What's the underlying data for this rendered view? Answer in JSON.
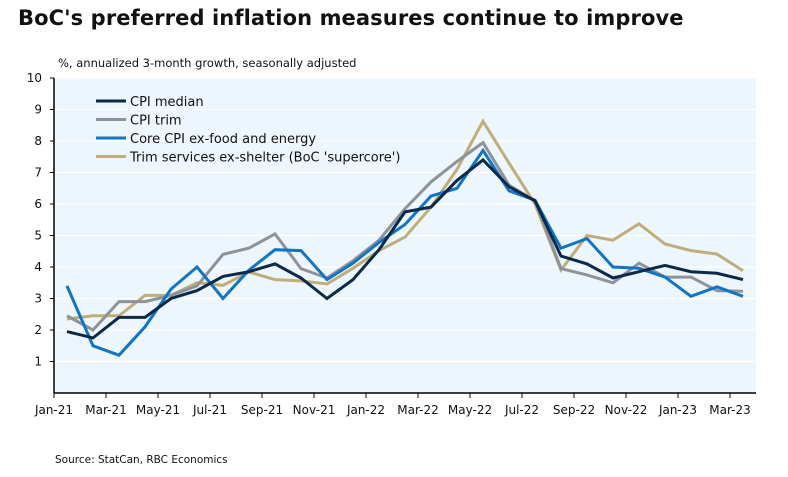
{
  "title": "BoC's preferred inflation measures continue to improve",
  "subtitle": "%, annualized 3-month growth, seasonally adjusted",
  "source": "Source: StatCan, RBC Economics",
  "chart_data": {
    "type": "line",
    "title": "BoC's preferred inflation measures continue to improve",
    "ylabel": "%, annualized 3-month growth, seasonally adjusted",
    "xlabel": "",
    "ylim": [
      0,
      10
    ],
    "yticks": [
      1,
      2,
      3,
      4,
      5,
      6,
      7,
      8,
      9,
      10
    ],
    "grid": true,
    "legend_position": "top-left",
    "x": [
      "Jan-21",
      "Feb-21",
      "Mar-21",
      "Apr-21",
      "May-21",
      "Jun-21",
      "Jul-21",
      "Aug-21",
      "Sep-21",
      "Oct-21",
      "Nov-21",
      "Dec-21",
      "Jan-22",
      "Feb-22",
      "Mar-22",
      "Apr-22",
      "May-22",
      "Jun-22",
      "Jul-22",
      "Aug-22",
      "Sep-22",
      "Oct-22",
      "Nov-22",
      "Dec-22",
      "Jan-23",
      "Feb-23",
      "Mar-23"
    ],
    "xtick_labels": [
      "Jan-21",
      "Mar-21",
      "May-21",
      "Jul-21",
      "Sep-21",
      "Nov-21",
      "Jan-22",
      "Mar-22",
      "May-22",
      "Jul-22",
      "Sep-22",
      "Nov-22",
      "Jan-23",
      "Mar-23"
    ],
    "series": [
      {
        "name": "CPI median",
        "color": "#0b2a4a",
        "values": [
          1.95,
          1.75,
          2.4,
          2.4,
          3.0,
          3.25,
          3.7,
          3.85,
          4.1,
          3.65,
          3.0,
          3.6,
          4.55,
          5.75,
          5.9,
          6.75,
          7.4,
          6.55,
          6.1,
          4.35,
          4.1,
          3.65,
          3.85,
          4.05,
          3.85,
          3.8,
          3.6
        ]
      },
      {
        "name": "CPI trim",
        "color": "#8e9399",
        "values": [
          2.45,
          2.0,
          2.9,
          2.9,
          3.1,
          3.4,
          4.4,
          4.6,
          5.05,
          3.95,
          3.65,
          4.2,
          4.85,
          5.85,
          6.7,
          7.35,
          7.95,
          6.6,
          6.1,
          3.95,
          3.75,
          3.5,
          4.12,
          3.68,
          3.68,
          3.25,
          3.23
        ]
      },
      {
        "name": "Core CPI ex-food and energy",
        "color": "#1274c4",
        "values": [
          3.4,
          1.5,
          1.2,
          2.1,
          3.3,
          4.0,
          3.0,
          3.9,
          4.55,
          4.52,
          3.6,
          4.12,
          4.78,
          5.35,
          6.25,
          6.5,
          7.7,
          6.42,
          6.12,
          4.6,
          4.9,
          4.0,
          3.96,
          3.68,
          3.07,
          3.37,
          3.07
        ]
      },
      {
        "name": "Trim services ex-shelter (BoC 'supercore')",
        "color": "#bfae7a",
        "values": [
          2.35,
          2.45,
          2.45,
          3.1,
          3.1,
          3.5,
          3.42,
          3.84,
          3.6,
          3.56,
          3.46,
          3.96,
          4.52,
          4.95,
          5.9,
          7.1,
          8.63,
          7.3,
          6.0,
          3.9,
          5.0,
          4.85,
          5.37,
          4.73,
          4.52,
          4.41,
          3.88
        ]
      }
    ]
  }
}
